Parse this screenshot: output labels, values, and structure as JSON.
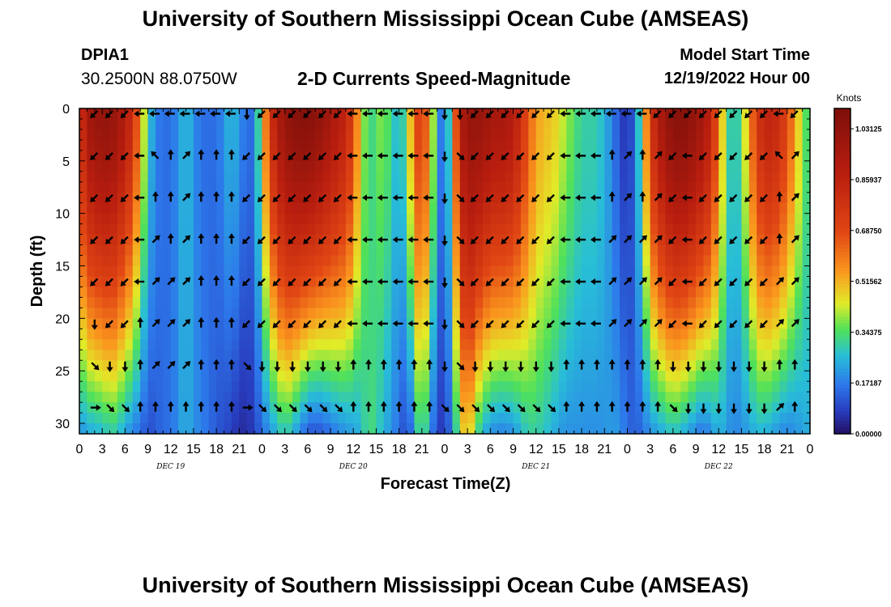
{
  "header": {
    "title": "University of Southern Mississippi Ocean Cube (AMSEAS)",
    "station_id": "DPIA1",
    "coordinates": "30.2500N  88.0750W",
    "subtitle": "2-D Currents Speed-Magnitude",
    "model_start_label": "Model Start Time",
    "model_start_value": "12/19/2022 Hour 00"
  },
  "footer": {
    "title": "University of Southern Mississippi Ocean Cube (AMSEAS)"
  },
  "colors": {
    "arrow": "#000000",
    "axis": "#000000"
  },
  "chart_data": {
    "type": "heatmap",
    "title": "2-D Currents Speed-Magnitude",
    "xlabel": "Forecast Time(Z)",
    "ylabel": "Depth (ft)",
    "colorbar_label": "Knots",
    "colorbar_ticks": [
      "1.03125",
      "0.85937",
      "0.68750",
      "0.51562",
      "0.34375",
      "0.17187",
      "0.00000"
    ],
    "colorbar_range": [
      0,
      1.1
    ],
    "x_range_hours": [
      0,
      96
    ],
    "x_tick_hours": [
      0,
      3,
      6,
      9,
      12,
      15,
      18,
      21,
      24,
      27,
      30,
      33,
      36,
      39,
      42,
      45,
      48,
      51,
      54,
      57,
      60,
      63,
      66,
      69,
      72,
      75,
      78,
      81,
      84,
      87,
      90,
      93,
      96
    ],
    "x_tick_labels": [
      "0",
      "3",
      "6",
      "9",
      "12",
      "15",
      "18",
      "21",
      "0",
      "3",
      "6",
      "9",
      "12",
      "15",
      "18",
      "21",
      "0",
      "3",
      "6",
      "9",
      "12",
      "15",
      "18",
      "21",
      "0",
      "3",
      "6",
      "9",
      "12",
      "15",
      "18",
      "21",
      "0"
    ],
    "day_labels": [
      {
        "hour": 12,
        "label": "DEC 19"
      },
      {
        "hour": 36,
        "label": "DEC 20"
      },
      {
        "hour": 60,
        "label": "DEC 21"
      },
      {
        "hour": 84,
        "label": "DEC 22"
      }
    ],
    "y_range_ft": [
      0,
      31
    ],
    "y_ticks": [
      0,
      5,
      10,
      15,
      20,
      25,
      30
    ],
    "speed_profile": {
      "hours": [
        0,
        1,
        2,
        3,
        4,
        5,
        6,
        7,
        8,
        9,
        10,
        11,
        12,
        13,
        14,
        15,
        16,
        17,
        18,
        19,
        20,
        21,
        22,
        23,
        24,
        25,
        26,
        27,
        28,
        29,
        30,
        31,
        32,
        33,
        34,
        35,
        36,
        37,
        38,
        39,
        40,
        41,
        42,
        43,
        44,
        45,
        46,
        47,
        48,
        49,
        50,
        51,
        52,
        53,
        54,
        55,
        56,
        57,
        58,
        59,
        60,
        61,
        62,
        63,
        64,
        65,
        66,
        67,
        68,
        69,
        70,
        71,
        72,
        73,
        74,
        75,
        76,
        77,
        78,
        79,
        80,
        81,
        82,
        83,
        84,
        85,
        86,
        87,
        88,
        89,
        90,
        91,
        92,
        93,
        94,
        95,
        96
      ],
      "surface": [
        0.75,
        0.95,
        1.0,
        1.02,
        1.02,
        0.98,
        0.9,
        0.8,
        0.55,
        0.3,
        0.18,
        0.15,
        0.15,
        0.2,
        0.28,
        0.2,
        0.15,
        0.15,
        0.15,
        0.2,
        0.28,
        0.2,
        0.15,
        0.15,
        0.45,
        0.75,
        0.92,
        1.0,
        1.05,
        1.07,
        1.07,
        1.05,
        1.0,
        0.95,
        0.9,
        0.85,
        0.7,
        0.45,
        0.3,
        0.35,
        0.4,
        0.3,
        0.25,
        0.35,
        0.65,
        0.75,
        0.55,
        0.25,
        0.1,
        0.45,
        0.9,
        1.0,
        1.02,
        1.0,
        0.95,
        0.95,
        0.95,
        0.9,
        0.8,
        0.65,
        0.55,
        0.5,
        0.5,
        0.45,
        0.4,
        0.35,
        0.3,
        0.3,
        0.3,
        0.25,
        0.18,
        0.1,
        0.05,
        0.15,
        0.4,
        0.75,
        0.9,
        1.0,
        1.05,
        1.07,
        1.05,
        1.0,
        0.95,
        0.85,
        0.6,
        0.35,
        0.25,
        0.35,
        0.55,
        0.75,
        0.85,
        0.85,
        0.8,
        0.7,
        0.55,
        0.4,
        0.3
      ],
      "bottom": [
        0.2,
        0.22,
        0.25,
        0.25,
        0.3,
        0.28,
        0.22,
        0.18,
        0.15,
        0.1,
        0.12,
        0.15,
        0.15,
        0.2,
        0.25,
        0.2,
        0.18,
        0.15,
        0.12,
        0.1,
        0.08,
        0.05,
        0.05,
        0.08,
        0.15,
        0.2,
        0.25,
        0.3,
        0.25,
        0.18,
        0.12,
        0.1,
        0.12,
        0.15,
        0.18,
        0.2,
        0.22,
        0.25,
        0.35,
        0.3,
        0.25,
        0.2,
        0.15,
        0.08,
        0.2,
        0.4,
        0.2,
        0.1,
        0.05,
        0.2,
        0.4,
        0.55,
        0.35,
        0.25,
        0.2,
        0.18,
        0.18,
        0.2,
        0.25,
        0.3,
        0.3,
        0.28,
        0.25,
        0.22,
        0.2,
        0.2,
        0.2,
        0.2,
        0.2,
        0.2,
        0.22,
        0.2,
        0.15,
        0.12,
        0.15,
        0.2,
        0.22,
        0.25,
        0.28,
        0.25,
        0.22,
        0.18,
        0.15,
        0.2,
        0.25,
        0.22,
        0.18,
        0.2,
        0.22,
        0.25,
        0.25,
        0.22,
        0.2,
        0.18,
        0.2,
        0.22,
        0.25
      ]
    },
    "arrows": {
      "depths_ft": [
        0.5,
        4.5,
        8.5,
        12.5,
        16.5,
        20.5,
        24.5,
        28.5
      ],
      "hours": [
        2,
        4,
        6,
        8,
        10,
        12,
        14,
        16,
        18,
        20,
        22,
        24,
        26,
        28,
        30,
        32,
        34,
        36,
        38,
        40,
        42,
        44,
        46,
        48,
        50,
        52,
        54,
        56,
        58,
        60,
        62,
        64,
        66,
        68,
        70,
        72,
        74,
        76,
        78,
        80,
        82,
        84,
        86,
        88,
        90,
        92,
        94,
        96
      ],
      "directions_deg": [
        [
          225,
          225,
          225,
          270,
          270,
          270,
          270,
          270,
          270,
          270,
          180,
          225,
          225,
          225,
          225,
          225,
          225,
          270,
          270,
          270,
          270,
          270,
          270,
          180,
          180,
          225,
          225,
          225,
          225,
          225,
          225,
          270,
          270,
          270,
          270,
          270,
          270,
          225,
          225,
          225,
          225,
          225,
          225,
          225,
          225,
          270,
          225,
          225
        ],
        [
          225,
          225,
          225,
          270,
          315,
          0,
          45,
          0,
          0,
          0,
          225,
          225,
          225,
          225,
          225,
          225,
          225,
          270,
          270,
          270,
          270,
          270,
          270,
          180,
          135,
          225,
          225,
          225,
          225,
          225,
          225,
          270,
          270,
          270,
          0,
          45,
          0,
          45,
          225,
          270,
          225,
          225,
          225,
          225,
          225,
          315,
          45,
          45
        ],
        [
          225,
          225,
          225,
          270,
          0,
          0,
          45,
          0,
          0,
          0,
          225,
          225,
          225,
          225,
          225,
          225,
          225,
          270,
          270,
          270,
          270,
          270,
          270,
          180,
          135,
          225,
          225,
          225,
          225,
          225,
          225,
          270,
          270,
          270,
          0,
          45,
          0,
          45,
          225,
          270,
          225,
          225,
          225,
          225,
          225,
          0,
          45,
          45
        ],
        [
          225,
          225,
          225,
          270,
          45,
          0,
          45,
          0,
          0,
          0,
          225,
          225,
          225,
          225,
          225,
          225,
          225,
          270,
          270,
          270,
          270,
          270,
          270,
          180,
          135,
          225,
          225,
          225,
          225,
          225,
          225,
          270,
          270,
          270,
          45,
          45,
          45,
          45,
          225,
          270,
          225,
          225,
          225,
          225,
          225,
          0,
          45,
          45
        ],
        [
          225,
          225,
          225,
          270,
          45,
          45,
          45,
          0,
          0,
          0,
          225,
          225,
          225,
          225,
          225,
          225,
          225,
          270,
          270,
          270,
          270,
          270,
          270,
          180,
          135,
          225,
          225,
          225,
          225,
          225,
          225,
          270,
          270,
          270,
          45,
          45,
          45,
          45,
          225,
          270,
          225,
          225,
          225,
          225,
          225,
          45,
          45,
          45
        ],
        [
          180,
          225,
          225,
          0,
          45,
          45,
          45,
          0,
          0,
          0,
          225,
          225,
          225,
          225,
          225,
          225,
          225,
          270,
          270,
          270,
          270,
          270,
          270,
          180,
          135,
          225,
          225,
          225,
          225,
          225,
          225,
          270,
          270,
          270,
          45,
          45,
          45,
          45,
          225,
          270,
          225,
          225,
          225,
          225,
          225,
          45,
          45,
          45
        ],
        [
          135,
          180,
          180,
          0,
          45,
          45,
          45,
          0,
          0,
          0,
          135,
          180,
          180,
          180,
          180,
          180,
          180,
          0,
          0,
          0,
          0,
          0,
          0,
          180,
          135,
          180,
          180,
          180,
          180,
          180,
          180,
          0,
          0,
          0,
          0,
          0,
          0,
          0,
          180,
          180,
          180,
          180,
          180,
          180,
          180,
          0,
          0,
          0
        ],
        [
          90,
          135,
          135,
          0,
          0,
          0,
          0,
          0,
          0,
          0,
          90,
          135,
          135,
          135,
          135,
          135,
          135,
          0,
          0,
          0,
          0,
          0,
          0,
          135,
          135,
          135,
          135,
          135,
          135,
          135,
          135,
          0,
          0,
          0,
          0,
          0,
          0,
          0,
          135,
          180,
          180,
          180,
          180,
          180,
          180,
          45,
          0,
          0
        ]
      ]
    }
  }
}
